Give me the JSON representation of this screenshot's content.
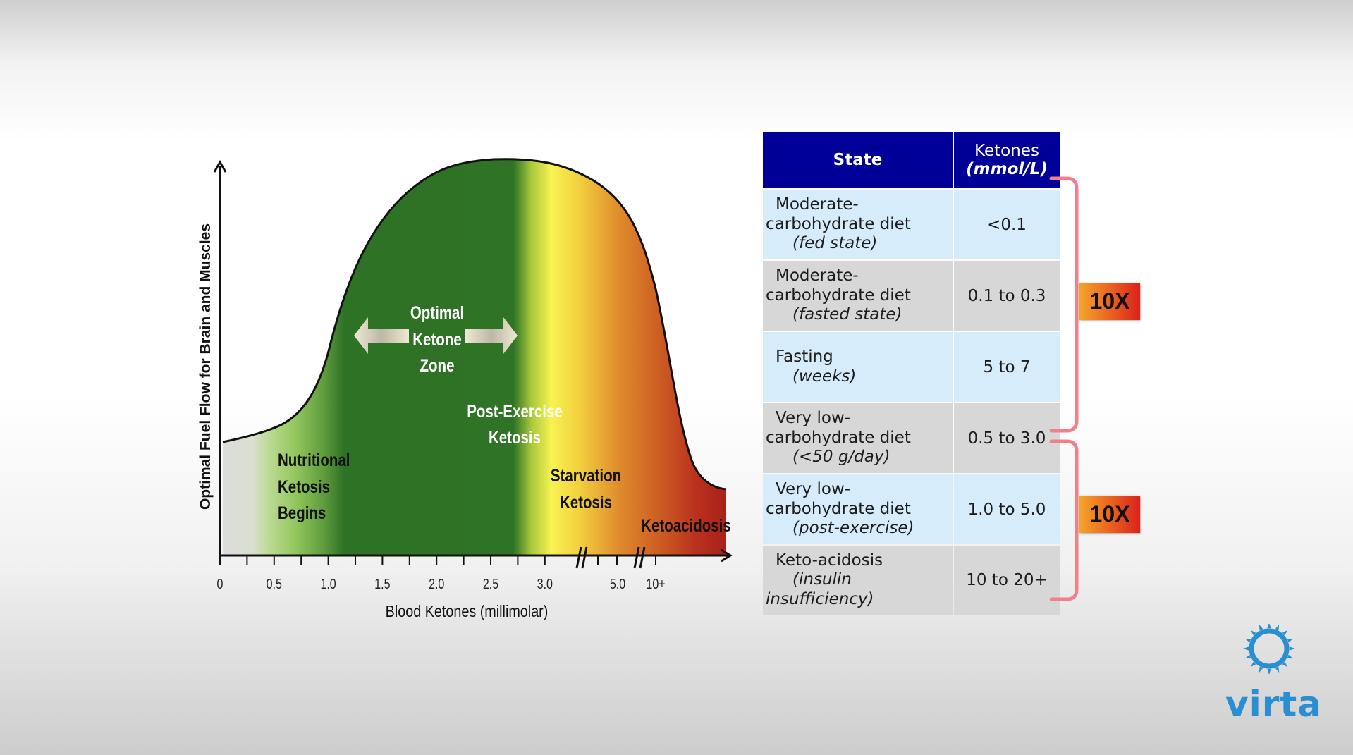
{
  "chart_data": {
    "type": "area",
    "ylabel": "Optimal Fuel Flow for Brain and Muscles",
    "xlabel": "Blood Ketones (millimolar)",
    "x_tick_labels": [
      "0",
      "0.5",
      "1.0",
      "1.5",
      "2.0",
      "2.5",
      "3.0",
      "5.0",
      "10+"
    ],
    "axis_breaks": [
      "after 3.0",
      "after 5.0"
    ],
    "curve": {
      "x": [
        0,
        0.5,
        1.0,
        1.5,
        2.0,
        2.5,
        3.0,
        5.0,
        10,
        20
      ],
      "y": [
        0.33,
        0.41,
        0.68,
        0.92,
        0.99,
        0.99,
        0.94,
        0.68,
        0.17,
        0.16
      ]
    },
    "zones": [
      {
        "label": "Nutritional Ketosis Begins",
        "color": "#8dc75a"
      },
      {
        "label": "Optimal Ketone Zone",
        "color": "#2e7225"
      },
      {
        "label": "Post-Exercise Ketosis",
        "color": "#2e7225"
      },
      {
        "label": "Starvation Ketosis",
        "color": "#f3e340"
      },
      {
        "label": "Ketoacidosis",
        "color": "#b0221a"
      }
    ]
  },
  "table": {
    "header": {
      "state": "State",
      "ketones_line1": "Ketones",
      "ketones_line2": "(mmol/L)"
    },
    "rows": [
      {
        "state": "Moderate-",
        "state2": "carbohydrate diet",
        "sub": "(fed state)",
        "value": "<0.1"
      },
      {
        "state": "Moderate-",
        "state2": "carbohydrate diet",
        "sub": "(fasted state)",
        "value": "0.1 to 0.3"
      },
      {
        "state": "Fasting",
        "state2": "",
        "sub": "(weeks)",
        "value": "5 to 7"
      },
      {
        "state": "Very low-",
        "state2": "carbohydrate diet",
        "sub": "(<50 g/day)",
        "value": "0.5 to 3.0"
      },
      {
        "state": "Very low-",
        "state2": "carbohydrate diet",
        "sub": "(post-exercise)",
        "value": "1.0 to 5.0"
      },
      {
        "state": "Keto-acidosis",
        "state2": "",
        "sub": "(insulin",
        "sub2": "insufficiency)",
        "value": "10 to 20+"
      }
    ]
  },
  "badges": [
    "10X",
    "10X"
  ],
  "logo": {
    "text": "virta",
    "icon": "sun-gear-icon",
    "color": "#2a8fd0"
  }
}
